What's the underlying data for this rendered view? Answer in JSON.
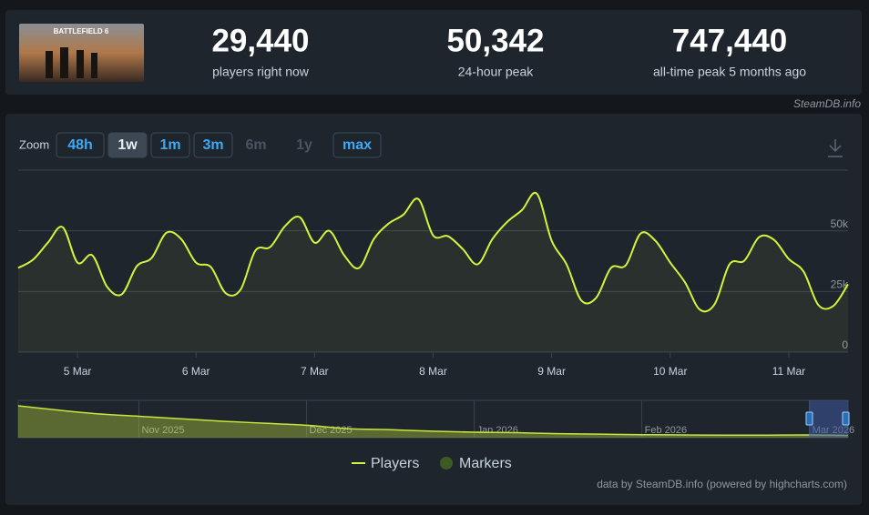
{
  "header": {
    "image_text": "BATTLEFIELD 6",
    "stats": [
      {
        "value": "29,440",
        "label": "players right now"
      },
      {
        "value": "50,342",
        "label": "24-hour peak"
      },
      {
        "value": "747,440",
        "label": "all-time peak 5 months ago"
      }
    ]
  },
  "source": "SteamDB.info",
  "toolbar": {
    "zoom_label": "Zoom",
    "buttons": [
      "48h",
      "1w",
      "1m",
      "3m",
      "6m",
      "1y",
      "max"
    ],
    "active_index": 1,
    "disabled_indices": [
      4,
      5
    ]
  },
  "chart_data": [
    {
      "type": "line",
      "xlim": [
        4.5,
        11.5
      ],
      "xticks": [
        {
          "value": 5,
          "label": "5 Mar"
        },
        {
          "value": 6,
          "label": "6 Mar"
        },
        {
          "value": 7,
          "label": "7 Mar"
        },
        {
          "value": 8,
          "label": "8 Mar"
        },
        {
          "value": 9,
          "label": "9 Mar"
        },
        {
          "value": 10,
          "label": "10 Mar"
        },
        {
          "value": 11,
          "label": "11 Mar"
        }
      ],
      "ylim": [
        0,
        75000
      ],
      "yticks": [
        0,
        {
          "value": 25000,
          "label": "25k"
        },
        {
          "value": 50000,
          "label": "50k"
        }
      ],
      "grid": true,
      "series": [
        {
          "name": "Players",
          "color": "#d2f53c",
          "x": [
            4.5,
            4.625,
            4.75,
            4.875,
            5,
            5.125,
            5.25,
            5.375,
            5.5,
            5.625,
            5.75,
            5.875,
            6,
            6.125,
            6.25,
            6.375,
            6.5,
            6.625,
            6.75,
            6.875,
            7,
            7.125,
            7.25,
            7.375,
            7.5,
            7.625,
            7.75,
            7.875,
            8,
            8.125,
            8.25,
            8.375,
            8.5,
            8.625,
            8.75,
            8.875,
            9,
            9.125,
            9.25,
            9.375,
            9.5,
            9.625,
            9.75,
            9.875,
            10,
            10.125,
            10.25,
            10.375,
            10.5,
            10.625,
            10.75,
            10.875,
            11,
            11.125,
            11.25,
            11.375,
            11.5
          ],
          "values": [
            34700,
            38100,
            45100,
            51500,
            36900,
            39900,
            26900,
            23900,
            35400,
            38800,
            49200,
            46600,
            36900,
            35100,
            24300,
            25700,
            41800,
            43300,
            51900,
            55600,
            45100,
            50000,
            39900,
            34700,
            46600,
            53000,
            56700,
            63100,
            48100,
            47800,
            42500,
            36200,
            46600,
            53700,
            58600,
            65300,
            45900,
            36200,
            21300,
            22400,
            34700,
            35800,
            48900,
            45900,
            36900,
            28700,
            17500,
            19800,
            36200,
            37700,
            47400,
            46300,
            38400,
            33200,
            19400,
            19000,
            28000
          ]
        }
      ],
      "markers": {
        "name": "Markers",
        "color": "#3d5a24"
      },
      "credits": "data by SteamDB.info (powered by highcharts.com)"
    },
    {
      "type": "area",
      "xlim": [
        10.28,
        15.23
      ],
      "xticks": [
        {
          "value": 11,
          "label": "Nov 2025"
        },
        {
          "value": 12,
          "label": "Dec 2025"
        },
        {
          "value": 13,
          "label": "Jan 2026"
        },
        {
          "value": 14,
          "label": "Feb 2026"
        },
        {
          "value": 15,
          "label": "Mar 2026"
        }
      ],
      "ylim": [
        0,
        750000
      ],
      "series": [
        {
          "name": "Players",
          "color": "#c8e63c",
          "x": [
            10.28,
            10.5,
            10.75,
            11,
            11.25,
            11.5,
            11.75,
            12,
            12.25,
            12.5,
            12.75,
            13,
            13.25,
            13.5,
            13.75,
            14,
            14.25,
            14.5,
            14.75,
            15,
            15.23
          ],
          "values": [
            640000,
            560000,
            480000,
            430000,
            380000,
            330000,
            290000,
            250000,
            180000,
            160000,
            130000,
            110000,
            100000,
            80000,
            70000,
            60000,
            55000,
            50000,
            50000,
            55000,
            45000
          ]
        }
      ]
    }
  ]
}
